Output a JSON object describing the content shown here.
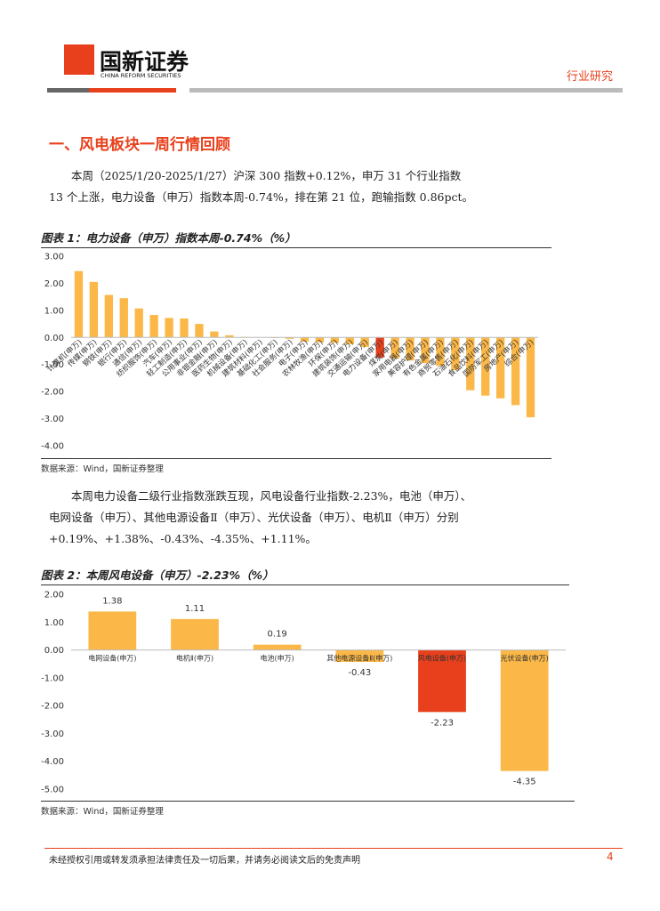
{
  "header": {
    "logo_name": "国新证券",
    "logo_subtitle": "CHINA REFORM SECURITIES",
    "category": "行业研究"
  },
  "section_title": "一、风电板块一周行情回顾",
  "paragraphs": [
    "本周（2025/1/20-2025/1/27）沪深 300 指数+0.12%，申万 31 个行业指数 13 个上涨，电力设备（申万）指数本周-0.74%，排在第 21 位，跑输指数 0.86pct。",
    "本周电力设备二级行业指数涨跌互现，风电设备行业指数-2.23%，电池（申万）、电网设备（申万）、其他电源设备Ⅱ（申万）、光伏设备（申万）、电机Ⅱ（申万）分别+0.19%、+1.38%、-0.43%、-4.35%、+1.11%。"
  ],
  "chart_data": [
    {
      "type": "bar",
      "title": "图表 1：电力设备（申万）指数本周-0.74%（%）",
      "source": "数据来源：Wind，国新证券整理",
      "categories": [
        "计算机(申万)",
        "传媒(申万)",
        "钢铁(申万)",
        "银行(申万)",
        "通信(申万)",
        "纺织服饰(申万)",
        "汽车(申万)",
        "轻工制造(申万)",
        "公用事业(申万)",
        "非银金融(申万)",
        "医药生物(申万)",
        "机械设备(申万)",
        "建筑材料(申万)",
        "基础化工(申万)",
        "社会服务(申万)",
        "电子(申万)",
        "农林牧渔(申万)",
        "环保(申万)",
        "建筑装饰(申万)",
        "交通运输(申万)",
        "电力设备(申万)",
        "煤炭(申万)",
        "家用电器(申万)",
        "美容护理(申万)",
        "有色金属(申万)",
        "商贸零售(申万)",
        "石油石化(申万)",
        "食品饮料(申万)",
        "国防军工(申万)",
        "房地产(申万)",
        "综合(申万)"
      ],
      "values": [
        2.45,
        2.05,
        1.57,
        1.45,
        1.07,
        0.83,
        0.72,
        0.7,
        0.5,
        0.22,
        0.08,
        0.02,
        0.01,
        -0.02,
        -0.05,
        -0.15,
        -0.18,
        -0.2,
        -0.25,
        -0.35,
        -0.74,
        -0.78,
        -0.85,
        -0.95,
        -1.05,
        -1.2,
        -1.95,
        -2.15,
        -2.25,
        -2.5,
        -2.95
      ],
      "colors": [
        "#fbb848",
        "#fbb848",
        "#fbb848",
        "#fbb848",
        "#fbb848",
        "#fbb848",
        "#fbb848",
        "#fbb848",
        "#fbb848",
        "#fbb848",
        "#fbb848",
        "#fbb848",
        "#fbb848",
        "#fbb848",
        "#fbb848",
        "#fbb848",
        "#fbb848",
        "#fbb848",
        "#fbb848",
        "#fbb848",
        "#e8401c",
        "#fbb848",
        "#fbb848",
        "#fbb848",
        "#fbb848",
        "#fbb848",
        "#fbb848",
        "#fbb848",
        "#fbb848",
        "#fbb848",
        "#fbb848"
      ],
      "ylim": [
        -4,
        3
      ],
      "yticks": [
        {
          "value": 3,
          "label": "3.00"
        },
        {
          "value": 2,
          "label": "2.00"
        },
        {
          "value": 1,
          "label": "1.00"
        },
        {
          "value": 0,
          "label": "0.00"
        },
        {
          "value": -1,
          "label": "-1.00"
        },
        {
          "value": -2,
          "label": "-2.00"
        },
        {
          "value": -3,
          "label": "-3.00"
        },
        {
          "value": -4,
          "label": "-4.00"
        }
      ]
    },
    {
      "type": "bar",
      "title": "图表 2：本周风电设备（申万）-2.23%（%）",
      "source": "数据来源：Wind，国新证券整理",
      "categories": [
        "电网设备(申万)",
        "电机Ⅱ(申万)",
        "电池(申万)",
        "其他电源设备Ⅱ(申万)",
        "风电设备(申万)",
        "光伏设备(申万)"
      ],
      "values": [
        1.38,
        1.11,
        0.19,
        -0.43,
        -2.23,
        -4.35
      ],
      "colors": [
        "#fbb848",
        "#fbb848",
        "#fbb848",
        "#fbb848",
        "#e8401c",
        "#fbb848"
      ],
      "ylim": [
        -5,
        2
      ],
      "yticks": [
        {
          "value": 2,
          "label": "2.00"
        },
        {
          "value": 1,
          "label": "1.00"
        },
        {
          "value": 0,
          "label": "0.00"
        },
        {
          "value": -1,
          "label": "-1.00"
        },
        {
          "value": -2,
          "label": "-2.00"
        },
        {
          "value": -3,
          "label": "-3.00"
        },
        {
          "value": -4,
          "label": "-4.00"
        },
        {
          "value": -5,
          "label": "-5.00"
        }
      ]
    }
  ],
  "footer": {
    "disclaimer": "未经授权引用或转发须承担法律责任及一切后果，并请务必阅读文后的免责声明",
    "page": "4"
  }
}
